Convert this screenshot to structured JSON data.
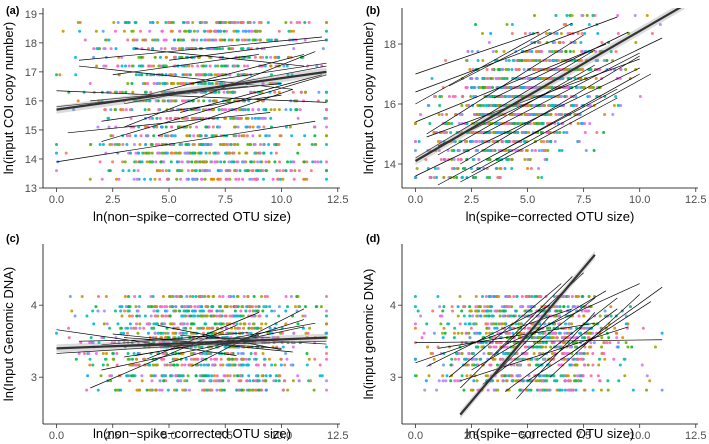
{
  "chart_data": [
    {
      "panel": "(a)",
      "type": "scatter",
      "xlabel": "ln(non−spike−corrected OTU size)",
      "ylabel": "ln(input COI copy number)",
      "xlim": [
        -0.6,
        12.6
      ],
      "ylim": [
        13.0,
        19.2
      ],
      "xticks": [
        0,
        2.5,
        5,
        7.5,
        10,
        12.5
      ],
      "xtick_labels": [
        "0.0",
        "2.5",
        "5.0",
        "7.5",
        "10.0",
        "12.5"
      ],
      "yticks": [
        13,
        14,
        15,
        16,
        17,
        18,
        19
      ],
      "ytick_labels": [
        "13",
        "14",
        "15",
        "16",
        "17",
        "18",
        "19"
      ],
      "y_levels": [
        13.3,
        13.6,
        13.9,
        14.2,
        14.5,
        14.8,
        15.1,
        15.4,
        15.7,
        16.0,
        16.3,
        16.6,
        16.9,
        17.2,
        17.5,
        17.8,
        18.1,
        18.4,
        18.7
      ],
      "x_center": 6.5,
      "x_spread": 2.4,
      "x_min": 0,
      "x_max": 12,
      "coupled": false,
      "point_count": 1400,
      "fit_lines": [
        {
          "x": [
            0,
            12
          ],
          "y": [
            16.35,
            15.95
          ]
        },
        {
          "x": [
            0,
            11.5
          ],
          "y": [
            13.9,
            15.3
          ]
        },
        {
          "x": [
            1,
            11.8
          ],
          "y": [
            17.4,
            18.2
          ]
        },
        {
          "x": [
            0,
            10
          ],
          "y": [
            15.8,
            16.6
          ]
        },
        {
          "x": [
            2,
            12
          ],
          "y": [
            14.6,
            16.9
          ]
        },
        {
          "x": [
            3,
            11.5
          ],
          "y": [
            15.1,
            17.7
          ]
        },
        {
          "x": [
            1,
            10.5
          ],
          "y": [
            17.2,
            16.4
          ]
        },
        {
          "x": [
            4,
            11
          ],
          "y": [
            16.2,
            17.6
          ]
        },
        {
          "x": [
            0.5,
            9.5
          ],
          "y": [
            14.9,
            15.6
          ]
        },
        {
          "x": [
            3,
            12
          ],
          "y": [
            15.9,
            17.2
          ]
        },
        {
          "x": [
            2.5,
            9
          ],
          "y": [
            16.9,
            17.6
          ]
        },
        {
          "x": [
            5,
            12
          ],
          "y": [
            17.4,
            18.1
          ]
        },
        {
          "x": [
            4.5,
            10.5
          ],
          "y": [
            14.8,
            16.4
          ]
        },
        {
          "x": [
            1.5,
            8.5
          ],
          "y": [
            16.0,
            16.5
          ]
        },
        {
          "x": [
            6,
            12
          ],
          "y": [
            16.6,
            17.3
          ]
        },
        {
          "x": [
            3.5,
            11
          ],
          "y": [
            17.8,
            17.2
          ]
        },
        {
          "x": [
            2,
            10
          ],
          "y": [
            15.3,
            16.2
          ]
        },
        {
          "x": [
            5.5,
            11.8
          ],
          "y": [
            15.6,
            16.9
          ]
        }
      ],
      "overall_fit": {
        "x": [
          0,
          12
        ],
        "y": [
          15.7,
          17.0
        ]
      }
    },
    {
      "panel": "(b)",
      "type": "scatter",
      "xlabel": "ln(spike−corrected OTU size)",
      "ylabel": "ln(input COI copy number)",
      "xlim": [
        -0.6,
        12.6
      ],
      "ylim": [
        13.2,
        19.2
      ],
      "xticks": [
        0,
        2.5,
        5,
        7.5,
        10,
        12.5
      ],
      "xtick_labels": [
        "0.0",
        "2.5",
        "5.0",
        "7.5",
        "10.0",
        "12.5"
      ],
      "yticks": [
        14,
        16,
        18
      ],
      "ytick_labels": [
        "14",
        "16",
        "18"
      ],
      "y_levels": [
        13.6,
        13.9,
        14.2,
        14.5,
        14.8,
        15.1,
        15.4,
        15.7,
        16.0,
        16.3,
        16.6,
        16.9,
        17.2,
        17.5,
        17.8,
        18.1,
        18.4,
        18.7
      ],
      "x_center": 4.8,
      "x_spread": 1.9,
      "x_min": 0,
      "x_max": 11,
      "coupled": true,
      "y_base": 16.0,
      "y_noise": 2.2,
      "y_slope": 0.35,
      "point_count": 1400,
      "fit_lines": [
        {
          "x": [
            0,
            10
          ],
          "y": [
            13.6,
            17.2
          ]
        },
        {
          "x": [
            1,
            9
          ],
          "y": [
            13.3,
            16.5
          ]
        },
        {
          "x": [
            0,
            8
          ],
          "y": [
            14.2,
            17.8
          ]
        },
        {
          "x": [
            2,
            10
          ],
          "y": [
            14.0,
            17.6
          ]
        },
        {
          "x": [
            0,
            6
          ],
          "y": [
            16.0,
            18.5
          ]
        },
        {
          "x": [
            0.5,
            7.5
          ],
          "y": [
            15.0,
            18.3
          ]
        },
        {
          "x": [
            1,
            11
          ],
          "y": [
            14.6,
            18.2
          ]
        },
        {
          "x": [
            0,
            9
          ],
          "y": [
            16.4,
            18.9
          ]
        },
        {
          "x": [
            2,
            9
          ],
          "y": [
            13.4,
            16.2
          ]
        },
        {
          "x": [
            3,
            10
          ],
          "y": [
            15.0,
            17.7
          ]
        },
        {
          "x": [
            0,
            8.5
          ],
          "y": [
            15.4,
            18.0
          ]
        },
        {
          "x": [
            1.5,
            7
          ],
          "y": [
            16.6,
            18.7
          ]
        },
        {
          "x": [
            2.5,
            10.5
          ],
          "y": [
            13.7,
            17.0
          ]
        },
        {
          "x": [
            0,
            5.5
          ],
          "y": [
            17.0,
            18.4
          ]
        },
        {
          "x": [
            3.5,
            9.5
          ],
          "y": [
            16.2,
            18.4
          ]
        },
        {
          "x": [
            1,
            8
          ],
          "y": [
            14.3,
            17.3
          ]
        },
        {
          "x": [
            0.5,
            10
          ],
          "y": [
            14.9,
            17.5
          ]
        },
        {
          "x": [
            4,
            10
          ],
          "y": [
            14.5,
            17.0
          ]
        }
      ],
      "overall_fit": {
        "x": [
          0,
          12
        ],
        "y": [
          14.1,
          19.3
        ]
      }
    },
    {
      "panel": "(c)",
      "type": "scatter",
      "xlabel": "ln(non−spike−corrected OTU size)",
      "ylabel": "ln(Input Genomic DNA)",
      "xlim": [
        -0.6,
        12.6
      ],
      "ylim": [
        2.35,
        4.85
      ],
      "xticks": [
        0,
        2.5,
        5,
        7.5,
        10,
        12.5
      ],
      "xtick_labels": [
        "0.0",
        "2.5",
        "5.0",
        "7.5",
        "10.0",
        "12.5"
      ],
      "yticks": [
        3,
        4
      ],
      "ytick_labels": [
        "3",
        "4"
      ],
      "y_levels": [
        2.82,
        2.95,
        3.02,
        3.17,
        3.25,
        3.33,
        3.42,
        3.48,
        3.55,
        3.61,
        3.68,
        3.74,
        3.85,
        3.92,
        3.98,
        4.12
      ],
      "x_center": 6.5,
      "x_spread": 2.4,
      "x_min": 0,
      "x_max": 12,
      "coupled": false,
      "point_count": 1100,
      "fit_lines": [
        {
          "x": [
            0,
            10
          ],
          "y": [
            3.33,
            3.52
          ]
        },
        {
          "x": [
            1.5,
            8
          ],
          "y": [
            2.85,
            3.72
          ]
        },
        {
          "x": [
            0,
            8
          ],
          "y": [
            3.66,
            3.3
          ]
        },
        {
          "x": [
            2,
            11
          ],
          "y": [
            3.1,
            3.7
          ]
        },
        {
          "x": [
            3,
            10
          ],
          "y": [
            3.55,
            3.4
          ]
        },
        {
          "x": [
            4,
            9
          ],
          "y": [
            3.25,
            3.9
          ]
        },
        {
          "x": [
            0,
            12
          ],
          "y": [
            3.4,
            3.5
          ]
        },
        {
          "x": [
            2.5,
            10.5
          ],
          "y": [
            3.6,
            3.35
          ]
        },
        {
          "x": [
            5,
            11
          ],
          "y": [
            3.2,
            3.8
          ]
        },
        {
          "x": [
            1,
            9.5
          ],
          "y": [
            3.5,
            3.55
          ]
        },
        {
          "x": [
            3.5,
            11.5
          ],
          "y": [
            3.3,
            3.75
          ]
        },
        {
          "x": [
            4.5,
            10
          ],
          "y": [
            3.72,
            3.38
          ]
        },
        {
          "x": [
            2,
            8.5
          ],
          "y": [
            3.45,
            3.62
          ]
        },
        {
          "x": [
            5.5,
            12
          ],
          "y": [
            3.58,
            3.46
          ]
        },
        {
          "x": [
            6,
            11
          ],
          "y": [
            3.15,
            3.95
          ]
        },
        {
          "x": [
            3,
            9
          ],
          "y": [
            3.28,
            3.58
          ]
        }
      ],
      "overall_fit": {
        "x": [
          0,
          12
        ],
        "y": [
          3.4,
          3.55
        ]
      }
    },
    {
      "panel": "(d)",
      "type": "scatter",
      "xlabel": "ln(spike−corrected OTU size)",
      "ylabel": "ln(input genomic DNA)",
      "xlim": [
        -0.6,
        12.6
      ],
      "ylim": [
        2.35,
        4.85
      ],
      "xticks": [
        0,
        2.5,
        5,
        7.5,
        10,
        12.5
      ],
      "xtick_labels": [
        "0.0",
        "2.5",
        "5.0",
        "7.5",
        "10.0",
        "12.5"
      ],
      "yticks": [
        3,
        4
      ],
      "ytick_labels": [
        "3",
        "4"
      ],
      "y_levels": [
        2.82,
        2.95,
        3.02,
        3.17,
        3.25,
        3.33,
        3.42,
        3.48,
        3.55,
        3.61,
        3.68,
        3.74,
        3.85,
        3.92,
        3.98,
        4.12
      ],
      "x_center": 5.2,
      "x_spread": 2.1,
      "x_min": 0,
      "x_max": 11,
      "coupled": false,
      "point_count": 1100,
      "fit_lines": [
        {
          "x": [
            0,
            11
          ],
          "y": [
            3.48,
            3.52
          ]
        },
        {
          "x": [
            2,
            7
          ],
          "y": [
            2.85,
            4.4
          ]
        },
        {
          "x": [
            3,
            8
          ],
          "y": [
            2.9,
            4.1
          ]
        },
        {
          "x": [
            1.5,
            6.5
          ],
          "y": [
            3.0,
            4.3
          ]
        },
        {
          "x": [
            4,
            9
          ],
          "y": [
            2.8,
            3.95
          ]
        },
        {
          "x": [
            2.5,
            8.5
          ],
          "y": [
            3.1,
            4.2
          ]
        },
        {
          "x": [
            5,
            10.5
          ],
          "y": [
            2.95,
            4.05
          ]
        },
        {
          "x": [
            0,
            7
          ],
          "y": [
            3.2,
            3.95
          ]
        },
        {
          "x": [
            3.5,
            7.5
          ],
          "y": [
            3.3,
            4.45
          ]
        },
        {
          "x": [
            6,
            10
          ],
          "y": [
            3.0,
            4.15
          ]
        },
        {
          "x": [
            1,
            8
          ],
          "y": [
            3.4,
            3.75
          ]
        },
        {
          "x": [
            4.5,
            8
          ],
          "y": [
            2.7,
            3.9
          ]
        },
        {
          "x": [
            2,
            9.5
          ],
          "y": [
            2.95,
            3.7
          ]
        },
        {
          "x": [
            5.5,
            9
          ],
          "y": [
            3.25,
            4.1
          ]
        },
        {
          "x": [
            3,
            6
          ],
          "y": [
            2.85,
            3.85
          ]
        },
        {
          "x": [
            7,
            11
          ],
          "y": [
            3.35,
            4.25
          ]
        },
        {
          "x": [
            0.5,
            6
          ],
          "y": [
            3.15,
            4.0
          ]
        },
        {
          "x": [
            4,
            10
          ],
          "y": [
            3.45,
            4.3
          ]
        }
      ],
      "overall_fit": {
        "x": [
          2,
          8
        ],
        "y": [
          2.48,
          4.7
        ]
      }
    }
  ],
  "point_colors": [
    "#f8766d",
    "#e58700",
    "#c99800",
    "#a3a500",
    "#6bb100",
    "#00ba38",
    "#00bf7d",
    "#00c0af",
    "#00bcd8",
    "#00b0f6",
    "#619cff",
    "#b983ff",
    "#e76bf3",
    "#fd61d1",
    "#ff67a4"
  ]
}
